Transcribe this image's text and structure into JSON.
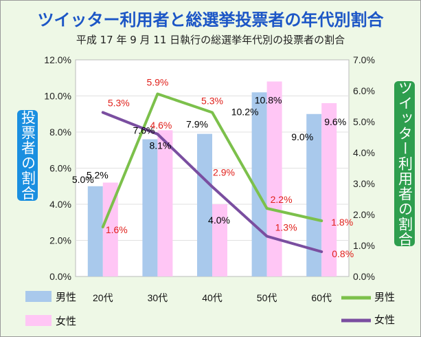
{
  "title": "ツイッター利用者と総選挙投票者の年代別割合",
  "subtitle": "平成 17 年 9 月 11 日執行の総選挙年代別の投票者の割合",
  "colors": {
    "male_bar": "#a9c9ec",
    "female_bar": "#ffc6f5",
    "male_line": "#7cc04b",
    "female_line": "#7a4ea0",
    "left_badge": "#1a8fe0",
    "right_badge": "#2e9e4e",
    "twitter_label": "#e0201b",
    "voter_label": "#000000"
  },
  "chart_data": {
    "type": "bar",
    "categories": [
      "20代",
      "30代",
      "40代",
      "50代",
      "60代"
    ],
    "left_axis": {
      "label": "投票者の割合",
      "ylim": [
        0,
        12
      ],
      "ticks": [
        "0.0%",
        "2.0%",
        "4.0%",
        "6.0%",
        "8.0%",
        "10.0%",
        "12.0%"
      ]
    },
    "right_axis": {
      "label": "ツイッター利用者の割合",
      "ylim": [
        0,
        7
      ],
      "ticks": [
        "0.0%",
        "1.0%",
        "2.0%",
        "3.0%",
        "4.0%",
        "5.0%",
        "6.0%",
        "7.0%"
      ]
    },
    "bar_series": [
      {
        "name": "男性",
        "values": [
          5.0,
          7.6,
          7.9,
          10.2,
          9.0
        ],
        "labels": [
          "5.0%",
          "7.6%",
          "7.9%",
          "10.2%",
          "9.0%"
        ]
      },
      {
        "name": "女性",
        "values": [
          5.2,
          8.1,
          4.0,
          10.8,
          9.6
        ],
        "labels": [
          "5.2%",
          "8.1%",
          "4.0%",
          "10.8%",
          "9.6%"
        ]
      }
    ],
    "line_series": [
      {
        "name": "男性",
        "values": [
          1.6,
          5.9,
          5.3,
          2.2,
          1.8
        ],
        "labels": [
          "1.6%",
          "5.9%",
          "5.3%",
          "2.2%",
          "1.8%"
        ]
      },
      {
        "name": "女性",
        "values": [
          5.3,
          4.6,
          2.9,
          1.3,
          0.8
        ],
        "labels": [
          "5.3%",
          "4.6%",
          "2.9%",
          "1.3%",
          "0.8%"
        ]
      }
    ],
    "legend": {
      "bar_male": "男性",
      "bar_female": "女性",
      "line_male": "男性",
      "line_female": "女性"
    },
    "grid": true,
    "legend_position": "bottom"
  }
}
